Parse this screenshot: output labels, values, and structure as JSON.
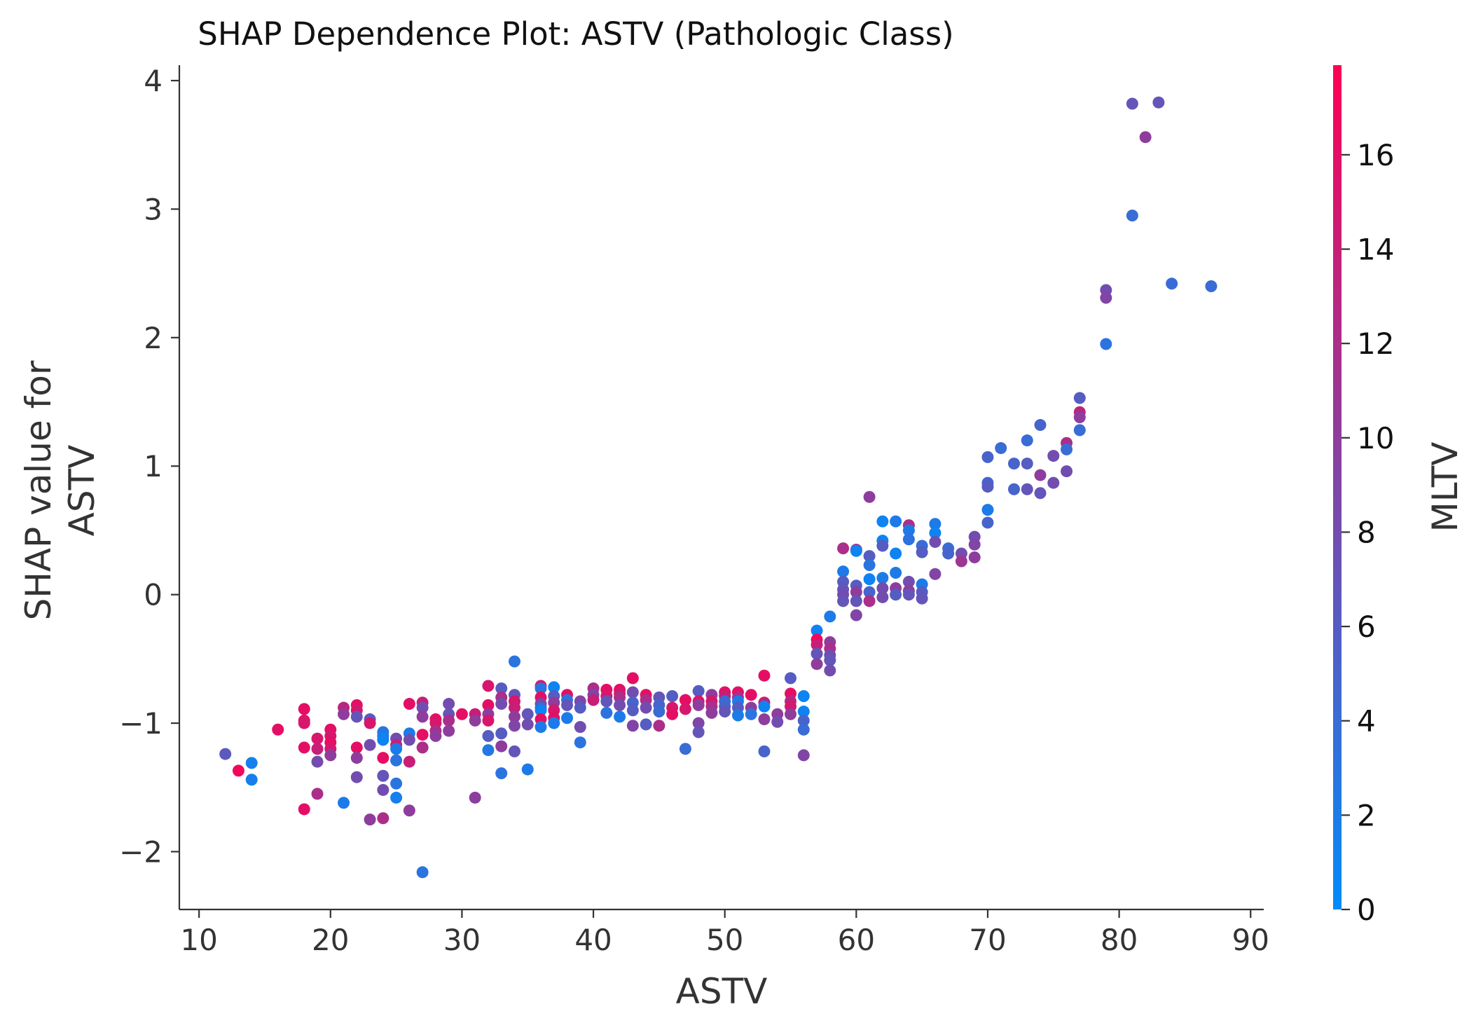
{
  "chart_data": {
    "type": "scatter",
    "title": "SHAP Dependence Plot: ASTV (Pathologic Class)",
    "xlabel": "ASTV",
    "ylabel_lines": [
      "SHAP value for",
      "ASTV"
    ],
    "colorbar_label": "MLTV",
    "xlim": [
      8.5,
      91
    ],
    "ylim": [
      -2.45,
      4.12
    ],
    "xticks": [
      10,
      20,
      30,
      40,
      50,
      60,
      70,
      80,
      90
    ],
    "xtick_labels": [
      "10",
      "20",
      "30",
      "40",
      "50",
      "60",
      "70",
      "80",
      "90"
    ],
    "yticks": [
      -2,
      -1,
      0,
      1,
      2,
      3,
      4
    ],
    "ytick_labels": [
      "−2",
      "−1",
      "0",
      "1",
      "2",
      "3",
      "4"
    ],
    "colorbar_range": [
      0,
      17.9
    ],
    "colorbar_ticks": [
      0,
      2,
      4,
      6,
      8,
      10,
      12,
      14,
      16
    ],
    "colorbar_tick_labels": [
      "0",
      "2",
      "4",
      "6",
      "8",
      "10",
      "12",
      "14",
      "16"
    ],
    "colormap": [
      "#008bfb",
      "#ff0052"
    ],
    "points": [
      [
        12,
        -1.24,
        6.5
      ],
      [
        13,
        -1.37,
        17
      ],
      [
        14,
        -1.31,
        1.5
      ],
      [
        14,
        -1.44,
        1.5
      ],
      [
        16,
        -1.05,
        16
      ],
      [
        18,
        -0.89,
        16
      ],
      [
        18,
        -0.98,
        16
      ],
      [
        18,
        -1.0,
        15
      ],
      [
        18,
        -1.19,
        16
      ],
      [
        18,
        -1.67,
        16
      ],
      [
        19,
        -1.12,
        15
      ],
      [
        19,
        -1.2,
        14
      ],
      [
        19,
        -1.3,
        8
      ],
      [
        19,
        -1.55,
        12
      ],
      [
        20,
        -1.05,
        16
      ],
      [
        20,
        -1.1,
        15
      ],
      [
        20,
        -1.15,
        16
      ],
      [
        20,
        -1.2,
        15
      ],
      [
        20,
        -1.25,
        10
      ],
      [
        21,
        -0.88,
        13
      ],
      [
        21,
        -0.93,
        10
      ],
      [
        21,
        -1.62,
        2
      ],
      [
        22,
        -0.86,
        16
      ],
      [
        22,
        -0.9,
        15
      ],
      [
        22,
        -0.95,
        7
      ],
      [
        22,
        -1.19,
        16
      ],
      [
        22,
        -1.27,
        10
      ],
      [
        22,
        -1.42,
        8
      ],
      [
        23,
        -0.97,
        6
      ],
      [
        23,
        -1.0,
        15
      ],
      [
        23,
        -1.17,
        8
      ],
      [
        23,
        -1.75,
        10
      ],
      [
        24,
        -1.07,
        3
      ],
      [
        24,
        -1.1,
        2
      ],
      [
        24,
        -1.13,
        1
      ],
      [
        24,
        -1.27,
        16
      ],
      [
        24,
        -1.41,
        7
      ],
      [
        24,
        -1.52,
        8
      ],
      [
        24,
        -1.74,
        12
      ],
      [
        25,
        -1.12,
        8
      ],
      [
        25,
        -1.17,
        14
      ],
      [
        25,
        -1.2,
        2
      ],
      [
        25,
        -1.29,
        3
      ],
      [
        25,
        -1.47,
        3
      ],
      [
        25,
        -1.58,
        1.5
      ],
      [
        26,
        -0.85,
        16
      ],
      [
        26,
        -1.08,
        2
      ],
      [
        26,
        -1.13,
        8
      ],
      [
        26,
        -1.3,
        14
      ],
      [
        26,
        -1.68,
        10
      ],
      [
        27,
        -0.84,
        14
      ],
      [
        27,
        -0.88,
        8
      ],
      [
        27,
        -0.95,
        10
      ],
      [
        27,
        -1.09,
        16
      ],
      [
        27,
        -1.19,
        12
      ],
      [
        27,
        -2.16,
        3
      ],
      [
        28,
        -0.97,
        16
      ],
      [
        28,
        -1.0,
        15
      ],
      [
        28,
        -1.06,
        12
      ],
      [
        28,
        -1.1,
        10
      ],
      [
        29,
        -0.85,
        8
      ],
      [
        29,
        -0.93,
        7
      ],
      [
        29,
        -0.98,
        12
      ],
      [
        29,
        -1.06,
        10
      ],
      [
        30,
        -0.93,
        16
      ],
      [
        31,
        -0.93,
        14
      ],
      [
        31,
        -0.98,
        10
      ],
      [
        31,
        -1.58,
        10
      ],
      [
        32,
        -0.71,
        15
      ],
      [
        32,
        -0.86,
        16
      ],
      [
        32,
        -0.93,
        10
      ],
      [
        32,
        -0.98,
        15
      ],
      [
        32,
        -1.1,
        6
      ],
      [
        32,
        -1.21,
        2.5
      ],
      [
        33,
        -0.73,
        6
      ],
      [
        33,
        -0.8,
        12
      ],
      [
        33,
        -0.85,
        8
      ],
      [
        33,
        -1.08,
        6
      ],
      [
        33,
        -1.18,
        10
      ],
      [
        33,
        -1.39,
        3
      ],
      [
        34,
        -0.52,
        3
      ],
      [
        34,
        -0.78,
        7
      ],
      [
        34,
        -0.83,
        15
      ],
      [
        34,
        -0.88,
        14
      ],
      [
        34,
        -0.95,
        10
      ],
      [
        34,
        -1.02,
        9
      ],
      [
        34,
        -1.22,
        7
      ],
      [
        35,
        -0.93,
        7
      ],
      [
        35,
        -1.01,
        8
      ],
      [
        35,
        -1.36,
        2
      ],
      [
        36,
        -0.71,
        15
      ],
      [
        36,
        -0.73,
        3
      ],
      [
        36,
        -0.8,
        16
      ],
      [
        36,
        -0.85,
        9
      ],
      [
        36,
        -0.88,
        5
      ],
      [
        36,
        -0.9,
        1
      ],
      [
        36,
        -0.97,
        16
      ],
      [
        36,
        -1.03,
        2
      ],
      [
        37,
        -0.72,
        1
      ],
      [
        37,
        -0.79,
        6
      ],
      [
        37,
        -0.84,
        10
      ],
      [
        37,
        -0.9,
        15
      ],
      [
        37,
        -0.96,
        16
      ],
      [
        37,
        -1.0,
        2
      ],
      [
        38,
        -0.78,
        16
      ],
      [
        38,
        -0.82,
        3
      ],
      [
        38,
        -0.86,
        7
      ],
      [
        38,
        -0.96,
        2
      ],
      [
        39,
        -0.83,
        9
      ],
      [
        39,
        -0.88,
        6
      ],
      [
        39,
        -1.03,
        8
      ],
      [
        39,
        -1.15,
        3
      ],
      [
        40,
        -0.73,
        12
      ],
      [
        40,
        -0.78,
        9
      ],
      [
        40,
        -0.82,
        14
      ],
      [
        41,
        -0.74,
        16
      ],
      [
        41,
        -0.79,
        15
      ],
      [
        41,
        -0.83,
        7
      ],
      [
        41,
        -0.92,
        3
      ],
      [
        42,
        -0.74,
        16
      ],
      [
        42,
        -0.77,
        15
      ],
      [
        42,
        -0.8,
        12
      ],
      [
        42,
        -0.86,
        8
      ],
      [
        42,
        -0.95,
        2
      ],
      [
        43,
        -0.65,
        16
      ],
      [
        43,
        -0.76,
        8
      ],
      [
        43,
        -0.84,
        5
      ],
      [
        43,
        -0.9,
        6
      ],
      [
        43,
        -1.02,
        9
      ],
      [
        44,
        -0.78,
        16
      ],
      [
        44,
        -0.82,
        12
      ],
      [
        44,
        -0.88,
        8
      ],
      [
        44,
        -1.01,
        6
      ],
      [
        45,
        -0.8,
        7
      ],
      [
        45,
        -0.86,
        5
      ],
      [
        45,
        -0.91,
        4
      ],
      [
        45,
        -1.02,
        12
      ],
      [
        46,
        -0.79,
        6
      ],
      [
        46,
        -0.88,
        15
      ],
      [
        46,
        -0.93,
        16
      ],
      [
        47,
        -0.82,
        16
      ],
      [
        47,
        -0.89,
        15
      ],
      [
        47,
        -1.2,
        4
      ],
      [
        48,
        -0.75,
        6
      ],
      [
        48,
        -0.83,
        15
      ],
      [
        48,
        -0.86,
        10
      ],
      [
        48,
        -1.0,
        9
      ],
      [
        48,
        -1.07,
        7
      ],
      [
        49,
        -0.78,
        10
      ],
      [
        49,
        -0.83,
        15
      ],
      [
        49,
        -0.87,
        12
      ],
      [
        49,
        -0.92,
        10
      ],
      [
        50,
        -0.76,
        16
      ],
      [
        50,
        -0.79,
        14
      ],
      [
        50,
        -0.83,
        4
      ],
      [
        50,
        -0.87,
        5
      ],
      [
        50,
        -0.91,
        7
      ],
      [
        51,
        -0.76,
        16
      ],
      [
        51,
        -0.8,
        12
      ],
      [
        51,
        -0.83,
        2
      ],
      [
        51,
        -0.88,
        6
      ],
      [
        51,
        -0.94,
        2
      ],
      [
        52,
        -0.78,
        16
      ],
      [
        52,
        -0.88,
        10
      ],
      [
        52,
        -0.93,
        3
      ],
      [
        53,
        -0.63,
        16
      ],
      [
        53,
        -0.84,
        14
      ],
      [
        53,
        -0.87,
        1
      ],
      [
        53,
        -0.97,
        10
      ],
      [
        53,
        -1.22,
        5
      ],
      [
        54,
        -0.93,
        10
      ],
      [
        54,
        -0.99,
        8
      ],
      [
        55,
        -0.65,
        6
      ],
      [
        55,
        -0.77,
        16
      ],
      [
        55,
        -0.83,
        13
      ],
      [
        55,
        -0.87,
        15
      ],
      [
        55,
        -0.93,
        10
      ],
      [
        56,
        -0.79,
        1
      ],
      [
        56,
        -0.91,
        1
      ],
      [
        56,
        -0.98,
        5
      ],
      [
        56,
        -1.05,
        4
      ],
      [
        56,
        -1.25,
        9
      ],
      [
        57,
        -0.28,
        1
      ],
      [
        57,
        -0.35,
        17
      ],
      [
        57,
        -0.39,
        14
      ],
      [
        57,
        -0.46,
        7
      ],
      [
        57,
        -0.54,
        10
      ],
      [
        58,
        -0.17,
        2
      ],
      [
        58,
        -0.37,
        10
      ],
      [
        58,
        -0.42,
        12
      ],
      [
        58,
        -0.47,
        8
      ],
      [
        58,
        -0.51,
        7
      ],
      [
        58,
        -0.59,
        8
      ],
      [
        59,
        0.36,
        12
      ],
      [
        59,
        0.18,
        2
      ],
      [
        59,
        0.1,
        6
      ],
      [
        59,
        0.04,
        7
      ],
      [
        59,
        0.0,
        8
      ],
      [
        59,
        -0.05,
        7
      ],
      [
        60,
        0.35,
        11
      ],
      [
        60,
        0.34,
        1
      ],
      [
        60,
        0.07,
        6
      ],
      [
        60,
        0.02,
        10
      ],
      [
        60,
        -0.05,
        7
      ],
      [
        60,
        -0.16,
        9
      ],
      [
        61,
        0.76,
        10
      ],
      [
        61,
        0.3,
        6
      ],
      [
        61,
        0.23,
        3
      ],
      [
        61,
        0.12,
        1
      ],
      [
        61,
        0.02,
        5
      ],
      [
        61,
        -0.05,
        12
      ],
      [
        62,
        0.57,
        1
      ],
      [
        62,
        0.42,
        1
      ],
      [
        62,
        0.38,
        6
      ],
      [
        62,
        0.13,
        2
      ],
      [
        62,
        0.05,
        8
      ],
      [
        62,
        -0.02,
        8
      ],
      [
        63,
        0.57,
        2
      ],
      [
        63,
        0.32,
        1
      ],
      [
        63,
        0.17,
        2
      ],
      [
        63,
        0.05,
        10
      ],
      [
        63,
        0.0,
        6
      ],
      [
        64,
        0.54,
        12
      ],
      [
        64,
        0.5,
        2
      ],
      [
        64,
        0.43,
        3
      ],
      [
        64,
        0.1,
        8
      ],
      [
        64,
        0.03,
        10
      ],
      [
        64,
        0.0,
        7
      ],
      [
        65,
        0.38,
        4
      ],
      [
        65,
        0.33,
        6
      ],
      [
        65,
        0.08,
        2
      ],
      [
        65,
        0.02,
        6
      ],
      [
        65,
        -0.03,
        7
      ],
      [
        66,
        0.55,
        2
      ],
      [
        66,
        0.48,
        1
      ],
      [
        66,
        0.41,
        8
      ],
      [
        66,
        0.16,
        9
      ],
      [
        67,
        0.36,
        4
      ],
      [
        67,
        0.32,
        5
      ],
      [
        68,
        0.32,
        8
      ],
      [
        68,
        0.26,
        11
      ],
      [
        69,
        0.45,
        8
      ],
      [
        69,
        0.39,
        9
      ],
      [
        69,
        0.29,
        10
      ],
      [
        70,
        1.07,
        5
      ],
      [
        70,
        0.87,
        5
      ],
      [
        70,
        0.84,
        6
      ],
      [
        70,
        0.66,
        2
      ],
      [
        70,
        0.56,
        5
      ],
      [
        71,
        1.14,
        4
      ],
      [
        72,
        1.02,
        5
      ],
      [
        72,
        0.82,
        5
      ],
      [
        73,
        1.2,
        4
      ],
      [
        73,
        1.02,
        6
      ],
      [
        73,
        0.82,
        7
      ],
      [
        74,
        1.32,
        5
      ],
      [
        74,
        0.93,
        10
      ],
      [
        74,
        0.79,
        7
      ],
      [
        75,
        1.08,
        8
      ],
      [
        75,
        0.87,
        8
      ],
      [
        76,
        1.18,
        12
      ],
      [
        76,
        1.13,
        4
      ],
      [
        76,
        0.96,
        8
      ],
      [
        77,
        1.53,
        6
      ],
      [
        77,
        1.42,
        13
      ],
      [
        77,
        1.38,
        10
      ],
      [
        77,
        1.28,
        4
      ],
      [
        79,
        2.37,
        8
      ],
      [
        79,
        2.31,
        9
      ],
      [
        79,
        1.95,
        3
      ],
      [
        81,
        3.82,
        7
      ],
      [
        81,
        2.95,
        4
      ],
      [
        82,
        3.56,
        10
      ],
      [
        83,
        3.83,
        7
      ],
      [
        84,
        2.42,
        4
      ],
      [
        87,
        2.4,
        4
      ]
    ]
  }
}
